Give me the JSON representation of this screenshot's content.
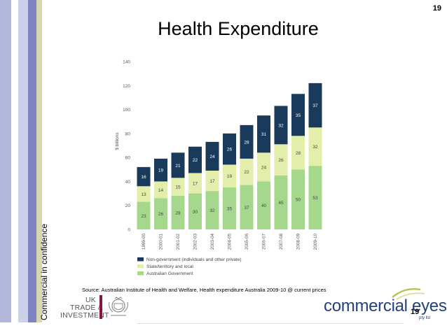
{
  "slide": {
    "title": "Health Expenditure",
    "page_number": "19",
    "side_label": "Commercial in confidence",
    "source": "Source: Australian Institute of Health and Welfare, Health expenditure Australia 2009-10 @ current prices"
  },
  "logos": {
    "uk_trade": [
      "UK",
      "TRADE &",
      "INVESTMENT"
    ],
    "commercial_eyes": "commercial eyes",
    "commercial_eyes_sub": "pty ltd"
  },
  "colors": {
    "non_government": "#1a3a5c",
    "state_territory": "#e2eeaa",
    "australian_government": "#a5d88c",
    "stripes": [
      "#b3b7d9",
      "#ffffff",
      "#ccd0e8",
      "#7c84c0",
      "#d7d8ae"
    ]
  },
  "chart_data": {
    "type": "bar",
    "stacked": true,
    "categories": [
      "1999-00",
      "2000-01",
      "2001-02",
      "2002-03",
      "2003-04",
      "2004-05",
      "2005-06",
      "2006-07",
      "2007-08",
      "2008-09",
      "2009-10"
    ],
    "series": [
      {
        "name": "Australian Government",
        "color": "#a5d88c",
        "values": [
          23,
          26,
          28,
          30,
          32,
          35,
          37,
          40,
          45,
          50,
          53
        ]
      },
      {
        "name": "State/territory and local",
        "color": "#e2eeaa",
        "values": [
          13,
          14,
          15,
          17,
          17,
          19,
          22,
          24,
          26,
          28,
          32
        ]
      },
      {
        "name": "Non-government (individuals and other private)",
        "color": "#1a3a5c",
        "values": [
          16,
          19,
          21,
          22,
          24,
          26,
          28,
          31,
          32,
          35,
          37
        ]
      }
    ],
    "legend_order": [
      "Non-government (individuals and other private)",
      "State/territory and local",
      "Australian Government"
    ],
    "ylabel": "$ billions",
    "ylim": [
      0,
      140
    ],
    "yticks": [
      0,
      20,
      40,
      60,
      80,
      100,
      120,
      140
    ],
    "grid": false,
    "legend_position": "bottom-left"
  }
}
